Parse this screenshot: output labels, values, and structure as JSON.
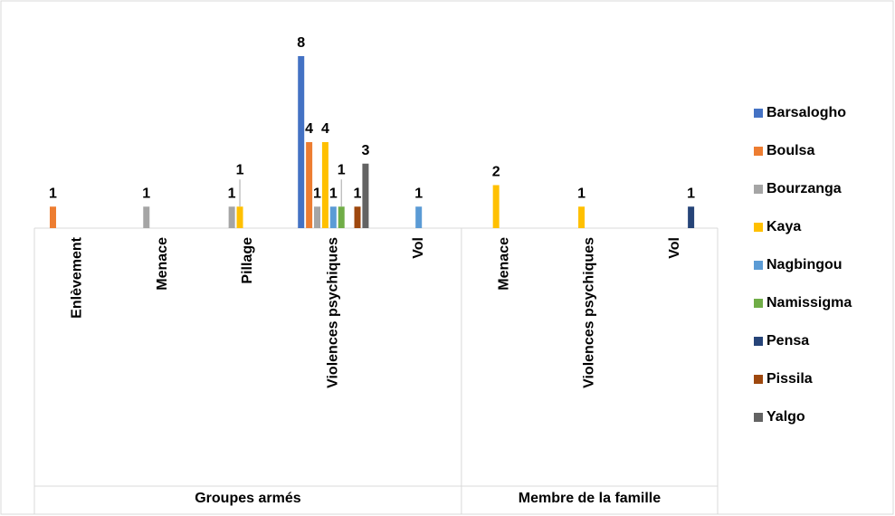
{
  "chart_data": {
    "type": "bar",
    "groups": [
      {
        "label": "Groupes armés",
        "categories": [
          "Enlèvement",
          "Menace",
          "Pillage",
          "Violences psychiques",
          "Vol"
        ]
      },
      {
        "label": "Membre de la famille",
        "categories": [
          "Menace",
          "Violences psychiques",
          "Vol"
        ]
      }
    ],
    "series": [
      {
        "name": "Barsalogho",
        "color": "#4472c4",
        "values": [
          null,
          null,
          null,
          8,
          null,
          null,
          null,
          null
        ]
      },
      {
        "name": "Boulsa",
        "color": "#ed7d31",
        "values": [
          1,
          null,
          null,
          4,
          null,
          null,
          null,
          null
        ]
      },
      {
        "name": "Bourzanga",
        "color": "#a5a5a5",
        "values": [
          null,
          1,
          1,
          1,
          null,
          null,
          null,
          null
        ]
      },
      {
        "name": "Kaya",
        "color": "#ffc000",
        "values": [
          null,
          null,
          1,
          4,
          null,
          2,
          1,
          null
        ]
      },
      {
        "name": "Nagbingou",
        "color": "#5b9bd5",
        "values": [
          null,
          null,
          null,
          1,
          1,
          null,
          null,
          null
        ]
      },
      {
        "name": "Namissigma",
        "color": "#70ad47",
        "values": [
          null,
          null,
          null,
          1,
          null,
          null,
          null,
          null
        ]
      },
      {
        "name": "Pensa",
        "color": "#264478",
        "values": [
          null,
          null,
          null,
          null,
          null,
          null,
          null,
          1
        ]
      },
      {
        "name": "Pissila",
        "color": "#9e480e",
        "values": [
          null,
          null,
          null,
          1,
          null,
          null,
          null,
          null
        ]
      },
      {
        "name": "Yalgo",
        "color": "#636363",
        "values": [
          null,
          null,
          null,
          3,
          null,
          null,
          null,
          null
        ]
      }
    ],
    "legend": "right"
  }
}
